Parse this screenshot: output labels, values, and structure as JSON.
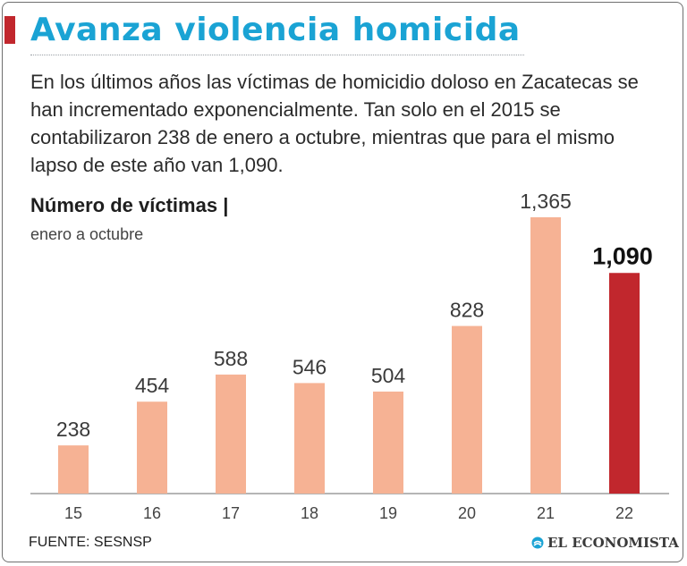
{
  "header": {
    "title": "Avanza violencia homicida",
    "intro": "En los últimos años las víctimas de homicidio doloso en Zacatecas se han incrementado exponencialmente. Tan solo en el 2015 se contabilizaron 238 de enero a octubre, mientras que para el mismo lapso de este año van 1,090."
  },
  "chart_data": {
    "type": "bar",
    "title": "Número de víctimas |",
    "subtitle": "enero a octubre",
    "categories": [
      "15",
      "16",
      "17",
      "18",
      "19",
      "20",
      "21",
      "22"
    ],
    "values": [
      238,
      454,
      588,
      546,
      504,
      828,
      1365,
      1090
    ],
    "value_labels": [
      "238",
      "454",
      "588",
      "546",
      "504",
      "828",
      "1,365",
      "1,090"
    ],
    "highlight_index": 7,
    "xlabel": "",
    "ylabel": "",
    "ylim": [
      0,
      1365
    ],
    "grid": false,
    "colors": {
      "bar": "#f6b294",
      "highlight": "#c1272d"
    }
  },
  "footer": {
    "source": "FUENTE: SESNSP",
    "brand": "EL ECONOMISTA",
    "brand_icon": "el-economista-logo-icon"
  },
  "colors": {
    "title": "#1aa3d4",
    "accent": "#c1272d",
    "text": "#2b2b2b"
  }
}
